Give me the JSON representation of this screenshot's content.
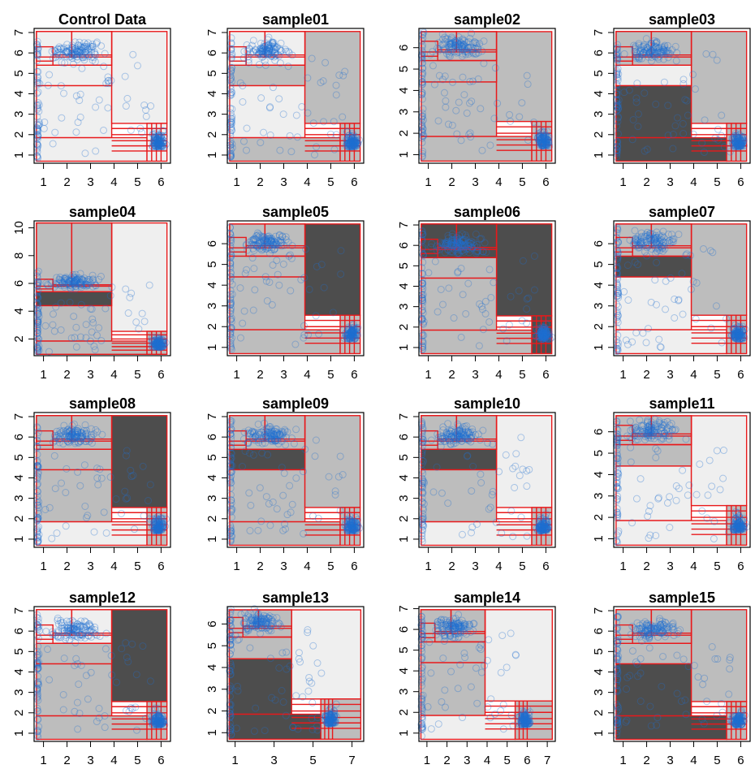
{
  "chart_data": [
    {
      "type": "scatter",
      "title": "Control Data",
      "xlim": [
        0.6,
        6.4
      ],
      "ylim": [
        0.6,
        7.2
      ],
      "xticks": [
        "1",
        "2",
        "3",
        "4",
        "5",
        "6"
      ],
      "yticks": [
        "1",
        "2",
        "3",
        "4",
        "5",
        "6",
        "7"
      ],
      "grid": false,
      "legend": "none"
    },
    {
      "type": "scatter",
      "title": "sample01",
      "xlim": [
        0.6,
        6.4
      ],
      "ylim": [
        0.6,
        7.2
      ],
      "xticks": [
        "1",
        "2",
        "3",
        "4",
        "5",
        "6"
      ],
      "yticks": [
        "1",
        "2",
        "3",
        "4",
        "5",
        "6",
        "7"
      ],
      "grid": false,
      "legend": "none"
    },
    {
      "type": "scatter",
      "title": "sample02",
      "xlim": [
        0.6,
        6.4
      ],
      "ylim": [
        0.6,
        6.9
      ],
      "xticks": [
        "1",
        "2",
        "3",
        "4",
        "5",
        "6"
      ],
      "yticks": [
        "1",
        "2",
        "3",
        "4",
        "5",
        "6"
      ],
      "grid": false,
      "legend": "none"
    },
    {
      "type": "scatter",
      "title": "sample03",
      "xlim": [
        0.6,
        6.4
      ],
      "ylim": [
        0.6,
        7.2
      ],
      "xticks": [
        "1",
        "2",
        "3",
        "4",
        "5",
        "6"
      ],
      "yticks": [
        "1",
        "2",
        "3",
        "4",
        "5",
        "6",
        "7"
      ],
      "grid": false,
      "legend": "none"
    },
    {
      "type": "scatter",
      "title": "sample04",
      "xlim": [
        0.6,
        6.4
      ],
      "ylim": [
        0.8,
        10.5
      ],
      "xticks": [
        "1",
        "2",
        "3",
        "4",
        "5",
        "6"
      ],
      "yticks": [
        "2",
        "4",
        "6",
        "8",
        "10"
      ],
      "grid": false,
      "legend": "none"
    },
    {
      "type": "scatter",
      "title": "sample05",
      "xlim": [
        0.6,
        6.4
      ],
      "ylim": [
        0.6,
        7.1
      ],
      "xticks": [
        "1",
        "2",
        "3",
        "4",
        "5",
        "6"
      ],
      "yticks": [
        "1",
        "2",
        "3",
        "4",
        "5",
        "6"
      ],
      "grid": false,
      "legend": "none"
    },
    {
      "type": "scatter",
      "title": "sample06",
      "xlim": [
        0.6,
        6.4
      ],
      "ylim": [
        0.6,
        7.2
      ],
      "xticks": [
        "1",
        "2",
        "3",
        "4",
        "5",
        "6"
      ],
      "yticks": [
        "1",
        "2",
        "3",
        "4",
        "5",
        "6",
        "7"
      ],
      "grid": false,
      "legend": "none"
    },
    {
      "type": "scatter",
      "title": "sample07",
      "xlim": [
        0.6,
        6.4
      ],
      "ylim": [
        0.6,
        7.1
      ],
      "xticks": [
        "1",
        "2",
        "3",
        "4",
        "5",
        "6"
      ],
      "yticks": [
        "1",
        "2",
        "3",
        "4",
        "5",
        "6"
      ],
      "grid": false,
      "legend": "none"
    },
    {
      "type": "scatter",
      "title": "sample08",
      "xlim": [
        0.6,
        6.4
      ],
      "ylim": [
        0.6,
        7.2
      ],
      "xticks": [
        "1",
        "2",
        "3",
        "4",
        "5",
        "6"
      ],
      "yticks": [
        "1",
        "2",
        "3",
        "4",
        "5",
        "6",
        "7"
      ],
      "grid": false,
      "legend": "none"
    },
    {
      "type": "scatter",
      "title": "sample09",
      "xlim": [
        0.6,
        6.4
      ],
      "ylim": [
        0.6,
        7.2
      ],
      "xticks": [
        "1",
        "2",
        "3",
        "4",
        "5",
        "6"
      ],
      "yticks": [
        "1",
        "2",
        "3",
        "4",
        "5",
        "6",
        "7"
      ],
      "grid": false,
      "legend": "none"
    },
    {
      "type": "scatter",
      "title": "sample10",
      "xlim": [
        0.6,
        6.4
      ],
      "ylim": [
        0.6,
        7.2
      ],
      "xticks": [
        "1",
        "2",
        "3",
        "4",
        "5",
        "6"
      ],
      "yticks": [
        "1",
        "2",
        "3",
        "4",
        "5",
        "6",
        "7"
      ],
      "grid": false,
      "legend": "none"
    },
    {
      "type": "scatter",
      "title": "sample11",
      "xlim": [
        0.6,
        6.4
      ],
      "ylim": [
        0.6,
        6.9
      ],
      "xticks": [
        "1",
        "2",
        "3",
        "4",
        "5",
        "6"
      ],
      "yticks": [
        "1",
        "2",
        "3",
        "4",
        "5",
        "6"
      ],
      "grid": false,
      "legend": "none"
    },
    {
      "type": "scatter",
      "title": "sample12",
      "xlim": [
        0.6,
        6.4
      ],
      "ylim": [
        0.6,
        7.2
      ],
      "xticks": [
        "1",
        "2",
        "3",
        "4",
        "5",
        "6"
      ],
      "yticks": [
        "1",
        "2",
        "3",
        "4",
        "5",
        "6",
        "7"
      ],
      "grid": false,
      "legend": "none"
    },
    {
      "type": "scatter",
      "title": "sample13",
      "xlim": [
        0.6,
        7.6
      ],
      "ylim": [
        0.6,
        6.8
      ],
      "xticks": [
        "1",
        "3",
        "5",
        "7"
      ],
      "yticks": [
        "1",
        "2",
        "3",
        "4",
        "5",
        "6"
      ],
      "grid": false,
      "legend": "none"
    },
    {
      "type": "scatter",
      "title": "sample14",
      "xlim": [
        0.6,
        7.4
      ],
      "ylim": [
        0.6,
        7.1
      ],
      "xticks": [
        "1",
        "2",
        "3",
        "4",
        "5",
        "6",
        "7"
      ],
      "yticks": [
        "1",
        "2",
        "3",
        "4",
        "5",
        "6",
        "7"
      ],
      "grid": false,
      "legend": "none"
    },
    {
      "type": "scatter",
      "title": "sample15",
      "xlim": [
        0.6,
        6.4
      ],
      "ylim": [
        0.6,
        7.2
      ],
      "xticks": [
        "1",
        "2",
        "3",
        "4",
        "5",
        "6"
      ],
      "yticks": [
        "1",
        "2",
        "3",
        "4",
        "5",
        "6",
        "7"
      ],
      "grid": false,
      "legend": "none"
    }
  ],
  "colors": {
    "point": "#1f6fd1",
    "gate_outline": "#e8191b",
    "axis": "#000000",
    "shade_light": "#efefef",
    "shade_mid": "#bdbdbd",
    "shade_dark": "#4d4d4d"
  }
}
